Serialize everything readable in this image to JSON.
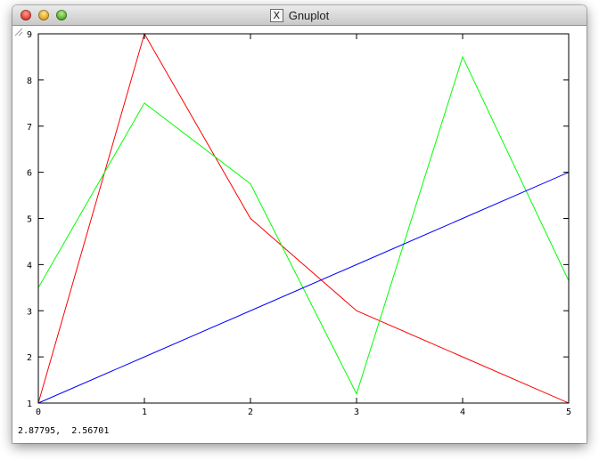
{
  "window": {
    "title": "Gnuplot",
    "title_icon": "x11-icon",
    "title_icon_glyph": "X"
  },
  "status": {
    "coordinates": "2.87795,  2.56701"
  },
  "chart_data": {
    "type": "line",
    "title": "",
    "xlabel": "",
    "ylabel": "",
    "xlim": [
      0,
      5
    ],
    "ylim": [
      1,
      9
    ],
    "xticks": [
      0,
      1,
      2,
      3,
      4,
      5
    ],
    "yticks": [
      1,
      2,
      3,
      4,
      5,
      6,
      7,
      8,
      9
    ],
    "grid": false,
    "legend": "none",
    "x": [
      0,
      1,
      2,
      3,
      4,
      5
    ],
    "series": [
      {
        "color": "#ff0000",
        "values": [
          1,
          9,
          5,
          3,
          2,
          1
        ]
      },
      {
        "color": "#00ff00",
        "values": [
          3.5,
          7.5,
          5.75,
          1.2,
          8.5,
          3.65
        ]
      },
      {
        "color": "#0000ff",
        "values": [
          1,
          2,
          3,
          4,
          5,
          6
        ]
      }
    ]
  }
}
